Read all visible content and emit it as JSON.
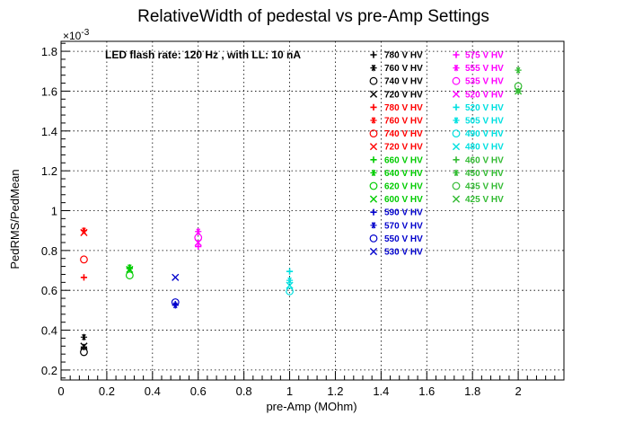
{
  "chart_data": {
    "type": "scatter",
    "title": "RelativeWidth of pedestal vs pre-Amp Settings",
    "xlabel": "pre-Amp (MOhm)",
    "ylabel": "PedRMS/PedMean",
    "y_exponent_label": "×10",
    "y_exponent_power": "-3",
    "annotation": "LED flash rate: 120 Hz , with LL: 10 nA",
    "xlim": [
      0,
      2.2
    ],
    "ylim": [
      0.15,
      1.85
    ],
    "x_ticks": [
      0,
      0.2,
      0.4,
      0.6,
      0.8,
      1,
      1.2,
      1.4,
      1.6,
      1.8,
      2
    ],
    "x_tick_labels": [
      "0",
      "0.2",
      "0.4",
      "0.6",
      "0.8",
      "1",
      "1.2",
      "1.4",
      "1.6",
      "1.8",
      "2"
    ],
    "y_ticks": [
      0.2,
      0.4,
      0.6,
      0.8,
      1,
      1.2,
      1.4,
      1.6,
      1.8
    ],
    "y_tick_labels": [
      "0.2",
      "0.4",
      "0.6",
      "0.8",
      "1",
      "1.2",
      "1.4",
      "1.6",
      "1.8"
    ],
    "grid": true,
    "legend_position": "top-right",
    "series": [
      {
        "name": "780 V HV",
        "color": "#000000",
        "marker": "plus",
        "points": [
          [
            0.1,
            0.315
          ]
        ]
      },
      {
        "name": "760 V HV",
        "color": "#000000",
        "marker": "star",
        "points": [
          [
            0.1,
            0.365
          ]
        ]
      },
      {
        "name": "740 V HV",
        "color": "#000000",
        "marker": "circle",
        "points": [
          [
            0.1,
            0.29
          ]
        ]
      },
      {
        "name": "720 V HV",
        "color": "#000000",
        "marker": "x",
        "points": [
          [
            0.1,
            0.32
          ]
        ]
      },
      {
        "name": "780 V HV",
        "color": "#ff0000",
        "marker": "plus",
        "points": [
          [
            0.1,
            0.665
          ]
        ]
      },
      {
        "name": "760 V HV",
        "color": "#ff0000",
        "marker": "star",
        "points": [
          [
            0.1,
            0.9
          ]
        ]
      },
      {
        "name": "740 V HV",
        "color": "#ff0000",
        "marker": "circle",
        "points": [
          [
            0.1,
            0.755
          ]
        ]
      },
      {
        "name": "720 V HV",
        "color": "#ff0000",
        "marker": "x",
        "points": [
          [
            0.1,
            0.89
          ]
        ]
      },
      {
        "name": "660 V HV",
        "color": "#00cc00",
        "marker": "plus",
        "points": [
          [
            0.3,
            0.71
          ]
        ]
      },
      {
        "name": "640 V HV",
        "color": "#00cc00",
        "marker": "star",
        "points": [
          [
            0.3,
            0.715
          ]
        ]
      },
      {
        "name": "620 V HV",
        "color": "#00cc00",
        "marker": "circle",
        "points": [
          [
            0.3,
            0.675
          ]
        ]
      },
      {
        "name": "600 V HV",
        "color": "#00cc00",
        "marker": "x",
        "points": [
          [
            0.3,
            0.705
          ]
        ]
      },
      {
        "name": "590 V HV",
        "color": "#0000cc",
        "marker": "plus",
        "points": [
          [
            0.5,
            0.53
          ]
        ]
      },
      {
        "name": "570 V HV",
        "color": "#0000cc",
        "marker": "star",
        "points": [
          [
            0.5,
            0.525
          ]
        ]
      },
      {
        "name": "550 V HV",
        "color": "#0000cc",
        "marker": "circle",
        "points": [
          [
            0.5,
            0.54
          ]
        ]
      },
      {
        "name": "530 V HV",
        "color": "#0000cc",
        "marker": "x",
        "points": [
          [
            0.5,
            0.665
          ]
        ]
      },
      {
        "name": "575 V HV",
        "color": "#ff00ff",
        "marker": "plus",
        "points": [
          [
            0.6,
            0.82
          ]
        ]
      },
      {
        "name": "555 V HV",
        "color": "#ff00ff",
        "marker": "star",
        "points": [
          [
            0.6,
            0.895
          ]
        ]
      },
      {
        "name": "535 V HV",
        "color": "#ff00ff",
        "marker": "circle",
        "points": [
          [
            0.6,
            0.865
          ]
        ]
      },
      {
        "name": "520 V HV",
        "color": "#ff00ff",
        "marker": "x",
        "points": [
          [
            0.6,
            0.84
          ]
        ]
      },
      {
        "name": "520 V HV",
        "color": "#00e0e0",
        "marker": "plus",
        "points": [
          [
            1.0,
            0.695
          ]
        ]
      },
      {
        "name": "505 V HV",
        "color": "#00e0e0",
        "marker": "star",
        "points": [
          [
            1.0,
            0.65
          ]
        ]
      },
      {
        "name": "490 V HV",
        "color": "#00e0e0",
        "marker": "circle",
        "points": [
          [
            1.0,
            0.595
          ]
        ]
      },
      {
        "name": "480 V HV",
        "color": "#00e0e0",
        "marker": "x",
        "points": [
          [
            1.0,
            0.625
          ]
        ]
      },
      {
        "name": "460 V HV",
        "color": "#33bb33",
        "marker": "plus",
        "points": [
          [
            2.0,
            1.6
          ]
        ]
      },
      {
        "name": "450 V HV",
        "color": "#33bb33",
        "marker": "star",
        "points": [
          [
            2.0,
            1.705
          ]
        ]
      },
      {
        "name": "435 V HV",
        "color": "#33bb33",
        "marker": "circle",
        "points": [
          [
            2.0,
            1.625
          ]
        ]
      },
      {
        "name": "425 V HV",
        "color": "#33bb33",
        "marker": "x",
        "points": [
          [
            2.0,
            1.6
          ]
        ]
      }
    ]
  }
}
